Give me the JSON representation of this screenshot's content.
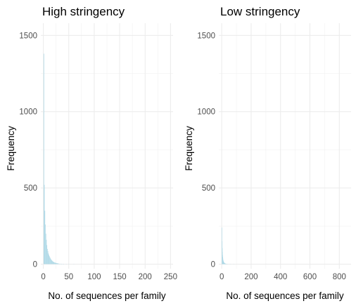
{
  "chart_data": [
    {
      "type": "bar",
      "title": "High stringency",
      "xlabel": "No. of sequences per family",
      "ylabel": "Frequency",
      "xlim": [
        -5,
        255
      ],
      "ylim": [
        -30,
        1580
      ],
      "x_ticks": [
        0,
        50,
        100,
        150,
        200,
        250
      ],
      "y_ticks": [
        0,
        500,
        1000,
        1500
      ],
      "bar_color": "#add8e6",
      "grid": true,
      "bin_width": 1,
      "x": [
        1,
        2,
        3,
        4,
        5,
        6,
        7,
        8,
        9,
        10,
        11,
        12,
        13,
        14,
        15,
        16,
        17,
        18,
        19,
        20,
        21,
        22,
        23,
        24,
        25,
        26,
        27,
        28,
        29,
        30,
        32,
        34,
        36,
        38,
        40,
        45,
        50,
        60
      ],
      "values": [
        1380,
        520,
        350,
        260,
        200,
        160,
        125,
        100,
        85,
        70,
        60,
        52,
        45,
        38,
        32,
        28,
        24,
        20,
        17,
        15,
        13,
        11,
        10,
        9,
        8,
        7,
        6,
        5,
        5,
        4,
        3,
        3,
        2,
        2,
        2,
        1,
        1,
        1
      ]
    },
    {
      "type": "bar",
      "title": "Low stringency",
      "xlabel": "No. of sequences per family",
      "ylabel": "Frequency",
      "xlim": [
        -20,
        880
      ],
      "ylim": [
        -30,
        1580
      ],
      "x_ticks": [
        0,
        200,
        400,
        600,
        800
      ],
      "y_ticks": [
        0,
        500,
        1000,
        1500
      ],
      "bar_color": "#add8e6",
      "grid": true,
      "bin_width": 1,
      "x": [
        1,
        2,
        3,
        4,
        5,
        6,
        7,
        8,
        9,
        10,
        11,
        12,
        13,
        14,
        15,
        16,
        17,
        18,
        19,
        20,
        22,
        24,
        26,
        28,
        30,
        35,
        40,
        50,
        60,
        80
      ],
      "values": [
        240,
        150,
        105,
        80,
        60,
        48,
        38,
        30,
        25,
        21,
        18,
        15,
        13,
        11,
        10,
        9,
        8,
        7,
        6,
        5,
        4,
        4,
        3,
        3,
        2,
        2,
        2,
        1,
        1,
        1
      ]
    }
  ]
}
